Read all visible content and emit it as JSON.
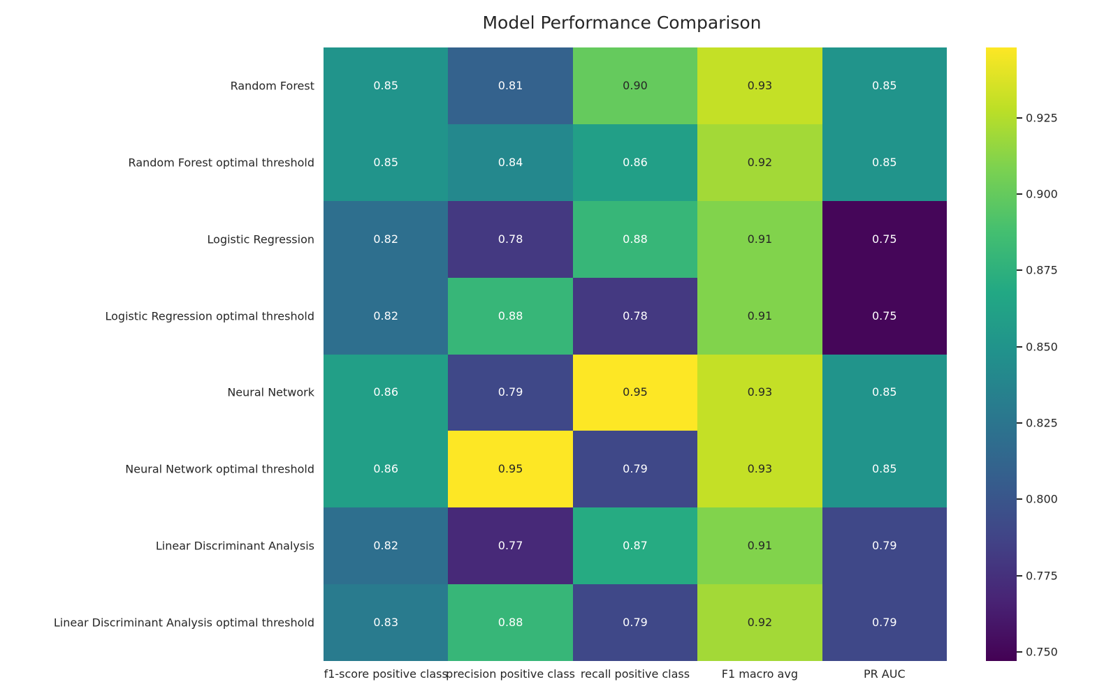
{
  "title": "Model Performance Comparison",
  "chart_data": {
    "type": "heatmap",
    "title": "Model Performance Comparison",
    "colormap": "viridis",
    "vmin": 0.747,
    "vmax": 0.948,
    "legend_position": "right-colorbar",
    "grid": false,
    "rows": [
      "Random Forest",
      "Random Forest optimal threshold",
      "Logistic Regression",
      "Logistic Regression optimal threshold",
      "Neural Network",
      "Neural Network optimal threshold",
      "Linear Discriminant Analysis",
      "Linear Discriminant Analysis optimal threshold"
    ],
    "columns": [
      "f1-score positive class",
      "precision positive class",
      "recall positive class",
      "F1 macro avg",
      "PR AUC"
    ],
    "values": [
      [
        0.85,
        0.81,
        0.9,
        0.93,
        0.85
      ],
      [
        0.85,
        0.84,
        0.86,
        0.92,
        0.85
      ],
      [
        0.82,
        0.78,
        0.88,
        0.91,
        0.75
      ],
      [
        0.82,
        0.88,
        0.78,
        0.91,
        0.75
      ],
      [
        0.86,
        0.79,
        0.95,
        0.93,
        0.85
      ],
      [
        0.86,
        0.95,
        0.79,
        0.93,
        0.85
      ],
      [
        0.82,
        0.77,
        0.87,
        0.91,
        0.79
      ],
      [
        0.83,
        0.88,
        0.79,
        0.92,
        0.79
      ]
    ],
    "colorbar_ticks": [
      "0.925",
      "0.900",
      "0.875",
      "0.850",
      "0.825",
      "0.800",
      "0.775",
      "0.750"
    ]
  }
}
